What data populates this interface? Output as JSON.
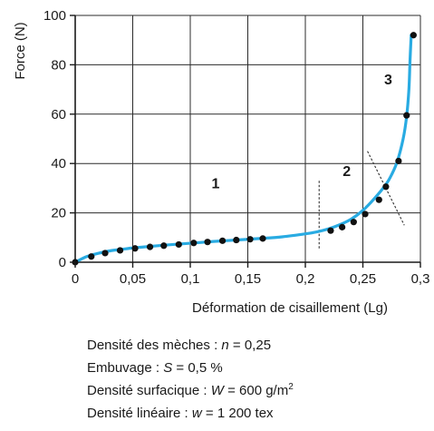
{
  "chart_data": {
    "type": "line",
    "xlabel": "Déformation de cisaillement (Lg)",
    "ylabel": "Force (N)",
    "xlim": [
      0,
      0.3
    ],
    "ylim": [
      0,
      100
    ],
    "xticks": [
      "0",
      "0,05",
      "0,1",
      "0,15",
      "0,2",
      "0,25",
      "0,3"
    ],
    "yticks": [
      "0",
      "20",
      "40",
      "60",
      "80",
      "100"
    ],
    "grid": true,
    "curve_color": "#29abe2",
    "marker_color": "#111111",
    "curve": {
      "x": [
        0,
        0.01,
        0.02,
        0.03,
        0.04,
        0.05,
        0.06,
        0.08,
        0.1,
        0.12,
        0.14,
        0.16,
        0.18,
        0.2,
        0.21,
        0.22,
        0.23,
        0.24,
        0.25,
        0.26,
        0.27,
        0.275,
        0.28,
        0.285,
        0.288,
        0.29,
        0.291,
        0.292
      ],
      "y": [
        0,
        2.3,
        3.6,
        4.6,
        5.2,
        5.8,
        6.2,
        7,
        7.7,
        8.4,
        9,
        9.6,
        10.3,
        11.5,
        12.3,
        13.5,
        15.2,
        17.5,
        21,
        25.8,
        31.5,
        35.5,
        41,
        50,
        59,
        70,
        82,
        92
      ]
    },
    "points": {
      "x": [
        0,
        0.014,
        0.026,
        0.039,
        0.052,
        0.065,
        0.077,
        0.09,
        0.103,
        0.115,
        0.128,
        0.14,
        0.152,
        0.163,
        0.222,
        0.232,
        0.242,
        0.252,
        0.264,
        0.27,
        0.281,
        0.288,
        0.294
      ],
      "y": [
        0,
        2.3,
        3.7,
        4.8,
        5.6,
        6.2,
        6.7,
        7.2,
        7.8,
        8.2,
        8.7,
        9,
        9.3,
        9.6,
        12.8,
        14.2,
        16.3,
        19.5,
        25.3,
        30.6,
        41,
        59.5,
        92
      ]
    },
    "dividers": [
      {
        "x1": 0.212,
        "y1": 33,
        "x2": 0.212,
        "y2": 5
      },
      {
        "x1": 0.254,
        "y1": 45,
        "x2": 0.286,
        "y2": 15
      }
    ],
    "regions": [
      {
        "label": "1",
        "x": 0.122,
        "y": 30
      },
      {
        "label": "2",
        "x": 0.236,
        "y": 35
      },
      {
        "label": "3",
        "x": 0.272,
        "y": 72
      }
    ]
  },
  "notes": [
    {
      "prefix": "Densité des mèches : ",
      "var": "n",
      "suffix": " = 0,25",
      "sup": ""
    },
    {
      "prefix": "Embuvage : ",
      "var": "S",
      "suffix": " = 0,5 %",
      "sup": ""
    },
    {
      "prefix": "Densité surfacique : ",
      "var": "W",
      "suffix": " = 600 g/m",
      "sup": "2"
    },
    {
      "prefix": "Densité linéaire : ",
      "var": "w",
      "suffix": " = 1 200 tex",
      "sup": ""
    }
  ]
}
